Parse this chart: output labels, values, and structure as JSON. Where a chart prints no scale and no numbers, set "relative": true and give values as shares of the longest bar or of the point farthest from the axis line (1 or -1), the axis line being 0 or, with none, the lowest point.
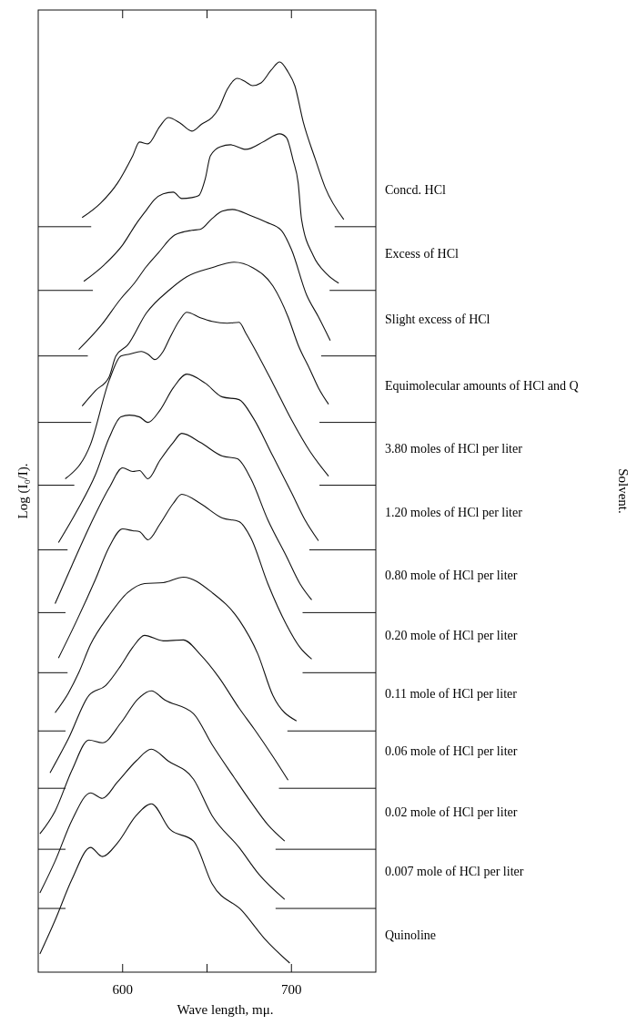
{
  "chart_data": {
    "type": "line",
    "relative": true,
    "xlabel": "Wave length, mμ.",
    "ylabel": "Log (I₀/I).",
    "legend_title": "Solvent.",
    "xlim": [
      550,
      750
    ],
    "xticks": [
      600,
      {
        "value": 650,
        "label": null
      },
      700
    ],
    "series": [
      {
        "name": "Concd. HCl",
        "color": "#111111",
        "x": [
          576,
          587,
          597,
          606,
          610,
          615,
          622,
          627,
          634,
          641,
          647,
          653,
          657,
          662,
          668,
          673,
          677,
          682,
          688,
          693,
          698,
          702,
          707,
          714,
          720,
          731
        ],
        "values": [
          0.829,
          0.845,
          0.867,
          0.897,
          0.912,
          0.91,
          0.929,
          0.939,
          0.933,
          0.924,
          0.932,
          0.939,
          0.949,
          0.97,
          0.982,
          0.978,
          0.974,
          0.977,
          0.991,
          1,
          0.989,
          0.974,
          0.934,
          0.894,
          0.862,
          0.827
        ]
      },
      {
        "name": "Excess of HCl",
        "color": "#111111",
        "x": [
          577,
          589,
          600,
          608,
          614,
          619,
          624,
          630,
          635,
          641,
          645,
          649,
          652,
          658,
          664,
          673,
          684,
          693,
          697,
          701,
          704,
          706,
          713,
          721,
          728
        ],
        "values": [
          0.759,
          0.777,
          0.799,
          0.822,
          0.837,
          0.849,
          0.855,
          0.857,
          0.85,
          0.851,
          0.853,
          0.872,
          0.897,
          0.907,
          0.909,
          0.904,
          0.913,
          0.921,
          0.917,
          0.892,
          0.867,
          0.827,
          0.787,
          0.767,
          0.757
        ]
      },
      {
        "name": "Slight excess of HCl",
        "color": "#111111",
        "x": [
          574,
          587,
          599,
          607,
          614,
          621,
          631,
          641,
          646,
          653,
          659,
          665,
          676,
          685,
          694,
          700,
          709,
          716,
          723
        ],
        "values": [
          0.684,
          0.71,
          0.74,
          0.757,
          0.775,
          0.79,
          0.81,
          0.815,
          0.816,
          0.828,
          0.836,
          0.838,
          0.831,
          0.824,
          0.815,
          0.794,
          0.744,
          0.72,
          0.694
        ]
      },
      {
        "name": "Equimolecular amounts of HCl and Q",
        "color": "#111111",
        "x": [
          576,
          584,
          592,
          596,
          603,
          614,
          628,
          638,
          653,
          666,
          677,
          689,
          698,
          704,
          711,
          716,
          722
        ],
        "values": [
          0.622,
          0.639,
          0.654,
          0.677,
          0.689,
          0.724,
          0.75,
          0.764,
          0.774,
          0.78,
          0.774,
          0.754,
          0.72,
          0.689,
          0.662,
          0.642,
          0.624
        ]
      },
      {
        "name": "3.80 moles of HCl per liter",
        "color": "#111111",
        "x": [
          566,
          581,
          592,
          599,
          604,
          611,
          615,
          619,
          624,
          628,
          634,
          638,
          646,
          653,
          662,
          669,
          673,
          677,
          689,
          700,
          711,
          722
        ],
        "values": [
          0.542,
          0.58,
          0.65,
          0.677,
          0.679,
          0.682,
          0.679,
          0.673,
          0.682,
          0.697,
          0.717,
          0.725,
          0.719,
          0.715,
          0.713,
          0.714,
          0.702,
          0.689,
          0.647,
          0.607,
          0.572,
          0.545
        ]
      },
      {
        "name": "1.20 moles of HCl per liter",
        "color": "#111111",
        "x": [
          562,
          573,
          584,
          592,
          599,
          604,
          610,
          615,
          622,
          630,
          638,
          649,
          659,
          669,
          677,
          689,
          700,
          708,
          716
        ],
        "values": [
          0.472,
          0.507,
          0.547,
          0.587,
          0.61,
          0.612,
          0.61,
          0.604,
          0.617,
          0.642,
          0.657,
          0.647,
          0.632,
          0.629,
          0.61,
          0.567,
          0.527,
          0.497,
          0.474
        ]
      },
      {
        "name": "0.80 mole of HCl per liter",
        "color": "#111111",
        "x": [
          560,
          570,
          581,
          592,
          600,
          606,
          610,
          615,
          622,
          630,
          635,
          646,
          659,
          668,
          676,
          686,
          697,
          705,
          712
        ],
        "values": [
          0.405,
          0.447,
          0.492,
          0.532,
          0.554,
          0.55,
          0.551,
          0.542,
          0.562,
          0.582,
          0.592,
          0.582,
          0.567,
          0.564,
          0.542,
          0.497,
          0.457,
          0.427,
          0.409
        ]
      },
      {
        "name": "0.20 mole of HCl per liter",
        "color": "#111111",
        "x": [
          562,
          573,
          584,
          592,
          600,
          606,
          610,
          615,
          622,
          630,
          635,
          646,
          659,
          669,
          676,
          686,
          697,
          705,
          712
        ],
        "values": [
          0.345,
          0.387,
          0.432,
          0.467,
          0.487,
          0.485,
          0.484,
          0.475,
          0.492,
          0.515,
          0.525,
          0.515,
          0.499,
          0.495,
          0.477,
          0.427,
          0.382,
          0.357,
          0.344
        ]
      },
      {
        "name": "0.11 mole of HCl per liter",
        "color": "#111111",
        "x": [
          560,
          568,
          574,
          581,
          592,
          603,
          613,
          624,
          636,
          653,
          669,
          680,
          689,
          703
        ],
        "values": [
          0.285,
          0.307,
          0.329,
          0.36,
          0.392,
          0.417,
          0.427,
          0.428,
          0.434,
          0.417,
          0.387,
          0.35,
          0.304,
          0.276
        ]
      },
      {
        "name": "0.06 mole of HCl per liter",
        "color": "#111111",
        "x": [
          557,
          568,
          580,
          590,
          599,
          606,
          613,
          624,
          636,
          646,
          657,
          669,
          678,
          689,
          698
        ],
        "values": [
          0.219,
          0.257,
          0.304,
          0.315,
          0.337,
          0.357,
          0.37,
          0.364,
          0.365,
          0.349,
          0.324,
          0.29,
          0.267,
          0.237,
          0.211
        ]
      },
      {
        "name": "0.02 mole of HCl per liter",
        "color": "#111111",
        "x": [
          551,
          560,
          570,
          580,
          588,
          599,
          609,
          617,
          625,
          642,
          653,
          666,
          676,
          686,
          696
        ],
        "values": [
          0.152,
          0.177,
          0.222,
          0.255,
          0.252,
          0.274,
          0.3,
          0.309,
          0.299,
          0.284,
          0.25,
          0.214,
          0.187,
          0.162,
          0.144
        ]
      },
      {
        "name": "0.007 mole of HCl per liter",
        "color": "#111111",
        "x": [
          551,
          560,
          570,
          581,
          588,
          597,
          608,
          617,
          627,
          642,
          653,
          669,
          681,
          696
        ],
        "values": [
          0.087,
          0.122,
          0.167,
          0.197,
          0.191,
          0.209,
          0.232,
          0.245,
          0.232,
          0.212,
          0.172,
          0.137,
          0.107,
          0.08
        ]
      },
      {
        "name": "Quinoline",
        "color": "#111111",
        "x": [
          551,
          560,
          570,
          581,
          588,
          597,
          608,
          617,
          628,
          642,
          653,
          671,
          684,
          699
        ],
        "values": [
          0.02,
          0.057,
          0.102,
          0.137,
          0.127,
          0.142,
          0.172,
          0.185,
          0.157,
          0.144,
          0.097,
          0.067,
          0.037,
          0.01
        ]
      }
    ],
    "ref_lines": [
      {
        "axis": "y",
        "value": 0.819
      },
      {
        "axis": "y",
        "value": 0.749
      },
      {
        "axis": "y",
        "value": 0.677
      },
      {
        "axis": "y",
        "value": 0.604
      },
      {
        "axis": "y",
        "value": 0.535
      },
      {
        "axis": "y",
        "value": 0.464
      },
      {
        "axis": "y",
        "value": 0.395
      },
      {
        "axis": "y",
        "value": 0.329
      },
      {
        "axis": "y",
        "value": 0.265
      },
      {
        "axis": "y",
        "value": 0.202
      },
      {
        "axis": "y",
        "value": 0.135
      },
      {
        "axis": "y",
        "value": 0.07
      }
    ]
  }
}
